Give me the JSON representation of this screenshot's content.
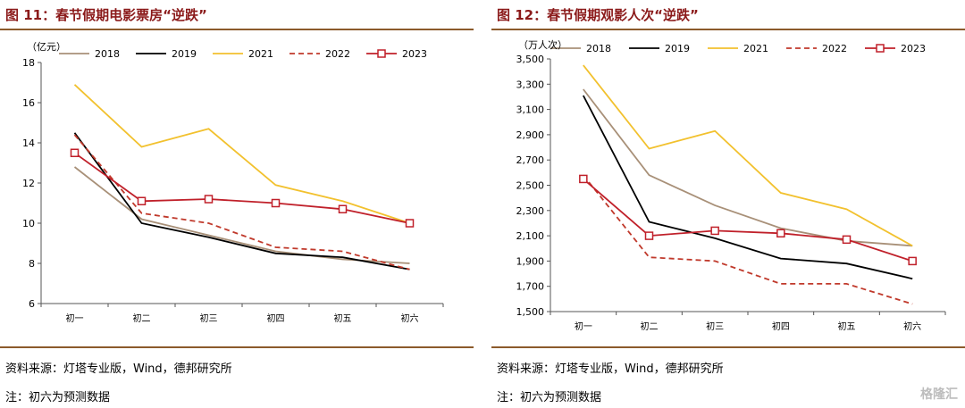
{
  "charts": [
    {
      "figure_title": "图 11：春节假期电影票房“逆跌”",
      "unit": "（亿元）",
      "source": "资料来源：灯塔专业版，Wind，德邦研究所",
      "note": "注：初六为预测数据",
      "chart_data": {
        "type": "line",
        "title": "春节假期电影票房“逆跌”",
        "categories": [
          "初一",
          "初二",
          "初三",
          "初四",
          "初五",
          "初六"
        ],
        "ylim": [
          6,
          18
        ],
        "yticks": [
          6,
          8,
          10,
          12,
          14,
          16,
          18
        ],
        "legend_position": "top",
        "grid": false,
        "series": [
          {
            "name": "2018",
            "values": [
              12.8,
              10.2,
              9.4,
              8.6,
              8.2,
              8.0
            ],
            "color": "#A89078",
            "dash": "solid",
            "marker": "none"
          },
          {
            "name": "2019",
            "values": [
              14.5,
              10.0,
              9.3,
              8.5,
              8.3,
              7.7
            ],
            "color": "#000000",
            "dash": "solid",
            "marker": "none"
          },
          {
            "name": "2021",
            "values": [
              16.9,
              13.8,
              14.7,
              11.9,
              11.1,
              10.0
            ],
            "color": "#F2C12E",
            "dash": "solid",
            "marker": "none"
          },
          {
            "name": "2022",
            "values": [
              14.4,
              10.5,
              10.0,
              8.8,
              8.6,
              7.7
            ],
            "color": "#C0392B",
            "dash": "dashed",
            "marker": "none"
          },
          {
            "name": "2023",
            "values": [
              13.5,
              11.1,
              11.2,
              11.0,
              10.7,
              10.0
            ],
            "color": "#C0202A",
            "dash": "solid",
            "marker": "square"
          }
        ]
      }
    },
    {
      "figure_title": "图 12：春节假期观影人次“逆跌”",
      "unit": "（万人次）",
      "source": "资料来源：灯塔专业版，Wind，德邦研究所",
      "note": "注：初六为预测数据",
      "chart_data": {
        "type": "line",
        "title": "春节假期观影人次“逆跌”",
        "categories": [
          "初一",
          "初二",
          "初三",
          "初四",
          "初五",
          "初六"
        ],
        "ylim": [
          1500,
          3500
        ],
        "yticks": [
          1500,
          1700,
          1900,
          2100,
          2300,
          2500,
          2700,
          2900,
          3100,
          3300,
          3500
        ],
        "legend_position": "top",
        "grid": false,
        "series": [
          {
            "name": "2018",
            "values": [
              3260,
              2580,
              2340,
              2160,
              2060,
              2020
            ],
            "color": "#A89078",
            "dash": "solid",
            "marker": "none"
          },
          {
            "name": "2019",
            "values": [
              3210,
              2210,
              2080,
              1920,
              1880,
              1760
            ],
            "color": "#000000",
            "dash": "solid",
            "marker": "none"
          },
          {
            "name": "2021",
            "values": [
              3450,
              2790,
              2930,
              2440,
              2310,
              2020
            ],
            "color": "#F2C12E",
            "dash": "solid",
            "marker": "none"
          },
          {
            "name": "2022",
            "values": [
              2580,
              1930,
              1900,
              1720,
              1720,
              1560
            ],
            "color": "#C0392B",
            "dash": "dashed",
            "marker": "none"
          },
          {
            "name": "2023",
            "values": [
              2550,
              2100,
              2140,
              2120,
              2070,
              1900
            ],
            "color": "#C0202A",
            "dash": "solid",
            "marker": "square"
          }
        ]
      }
    }
  ],
  "watermark": "格隆汇"
}
